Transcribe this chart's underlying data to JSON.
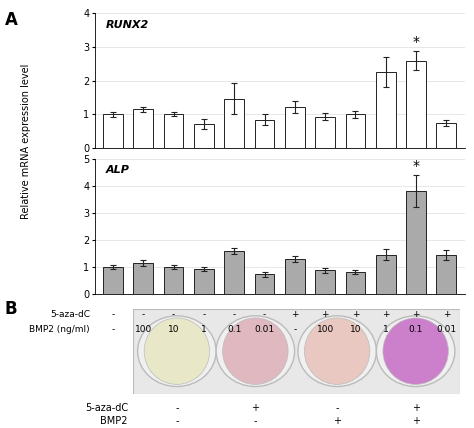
{
  "runx2_values": [
    1.0,
    1.15,
    1.0,
    0.72,
    1.47,
    0.85,
    1.22,
    0.93,
    1.0,
    2.25,
    2.58,
    0.75
  ],
  "runx2_errors": [
    0.07,
    0.08,
    0.06,
    0.15,
    0.45,
    0.15,
    0.18,
    0.1,
    0.1,
    0.45,
    0.28,
    0.1
  ],
  "alp_values": [
    1.0,
    1.15,
    1.0,
    0.93,
    1.58,
    0.73,
    1.3,
    0.87,
    0.82,
    1.45,
    3.8,
    1.45
  ],
  "alp_errors": [
    0.08,
    0.1,
    0.07,
    0.08,
    0.12,
    0.1,
    0.12,
    0.08,
    0.07,
    0.2,
    0.6,
    0.18
  ],
  "aza_dc_labels": [
    "-",
    "-",
    "-",
    "-",
    "-",
    "-",
    "+",
    "+",
    "+",
    "+",
    "+",
    "+"
  ],
  "bmp2_labels": [
    "-",
    "100",
    "10",
    "1",
    "0.1",
    "0.01",
    "-",
    "100",
    "10",
    "1",
    "0.1",
    "0.01"
  ],
  "runx2_bar_color": "#ffffff",
  "alp_bar_color": "#aaaaaa",
  "bar_edge_color": "#222222",
  "runx2_ylim": [
    0,
    4
  ],
  "alp_ylim": [
    0,
    5
  ],
  "runx2_yticks": [
    0,
    1,
    2,
    3,
    4
  ],
  "alp_yticks": [
    0,
    1,
    2,
    3,
    4,
    5
  ],
  "ylabel": "Relative mRNA expression level",
  "panel_a_label": "A",
  "panel_b_label": "B",
  "runx2_label": "RUNX2",
  "alp_label": "ALP",
  "significant_bar_runx2": 10,
  "significant_bar_alp": 10,
  "grid_color": "#dddddd",
  "b_aza_labels": [
    "-",
    "+",
    "-",
    "+"
  ],
  "b_bmp2_labels": [
    "-",
    "-",
    "+",
    "+"
  ],
  "b_well_fill_colors": [
    "#e8e8c8",
    "#e0b8c0",
    "#e8c8c0",
    "#cc80cc"
  ],
  "b_well_edge_color": "#cccccc",
  "b_well_bg_color": "#e0e0e0",
  "b_rect_bg": "#e8e8e8",
  "errorbar_capsize": 2,
  "errorbar_color": "#222222",
  "bar_width": 0.65
}
